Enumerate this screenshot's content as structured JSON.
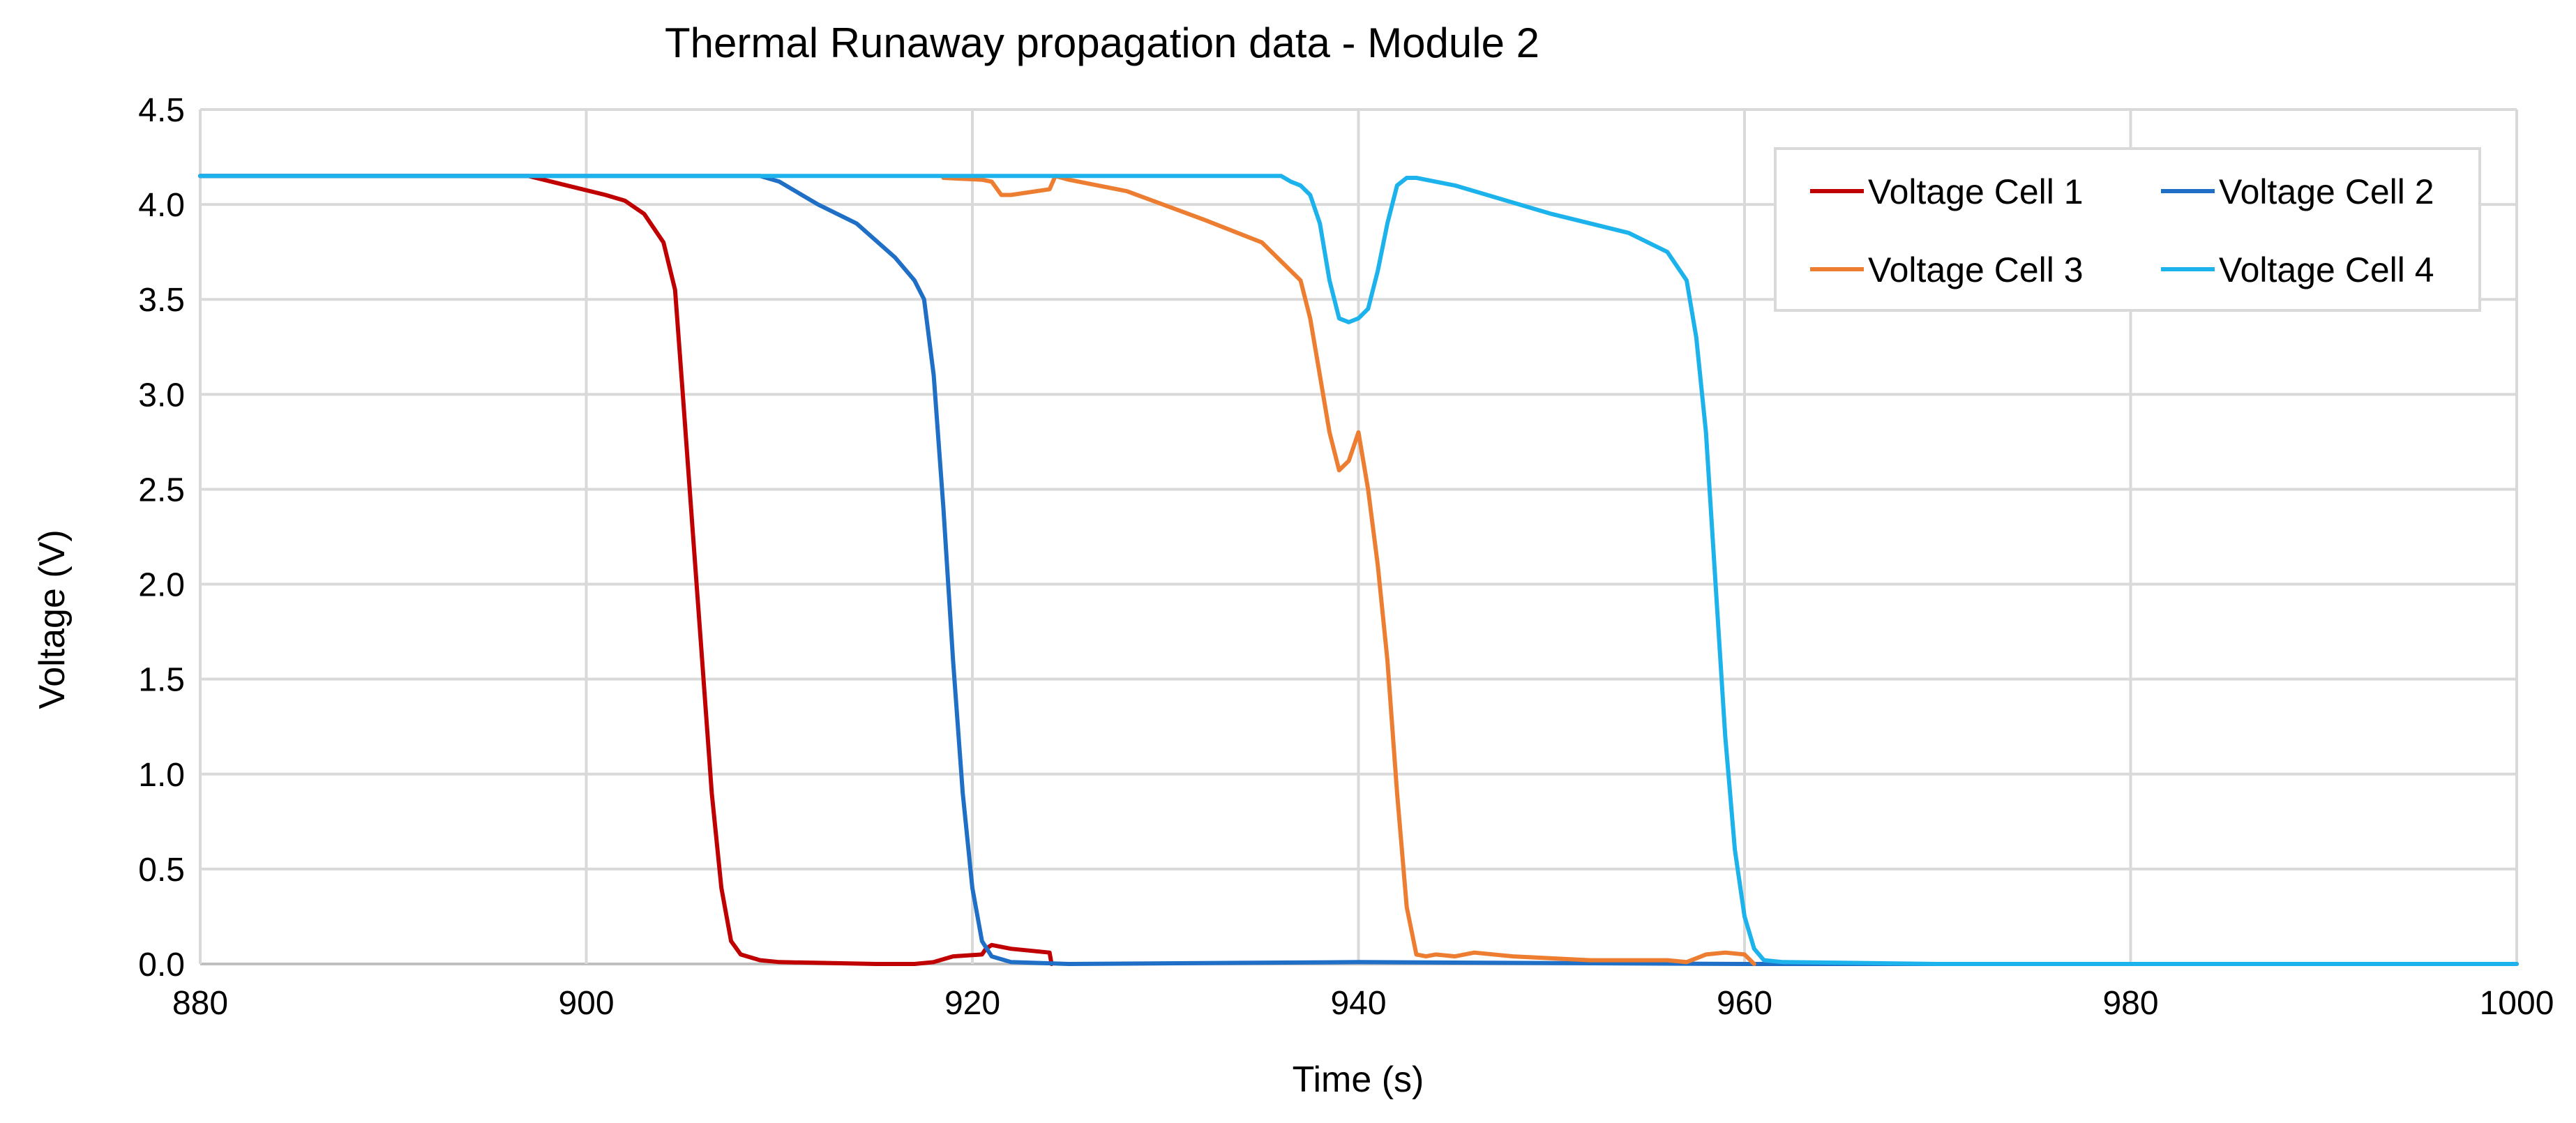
{
  "chart_data": {
    "type": "line",
    "title": "Thermal Runaway propagation data  - Module 2",
    "xlabel": "Time (s)",
    "ylabel": "Voltage (V)",
    "xlim": [
      880,
      1000
    ],
    "ylim": [
      0,
      4.5
    ],
    "x_ticks": [
      880,
      900,
      920,
      940,
      960,
      980,
      1000
    ],
    "y_ticks": [
      "0.0",
      "0.5",
      "1.0",
      "1.5",
      "2.0",
      "2.5",
      "3.0",
      "3.5",
      "4.0",
      "4.5"
    ],
    "grid": true,
    "legend_position": "top-right",
    "series": [
      {
        "name": "Voltage Cell 1",
        "color": "#c00000",
        "x": [
          880,
          897,
          899,
          901,
          902,
          903,
          904,
          904.6,
          905,
          905.5,
          906,
          906.5,
          907,
          907.5,
          908,
          909,
          910,
          915,
          917,
          918,
          919,
          920.5,
          920.7,
          921,
          922,
          924,
          924.1
        ],
        "y": [
          4.15,
          4.15,
          4.1,
          4.05,
          4.02,
          3.95,
          3.8,
          3.55,
          3.0,
          2.3,
          1.6,
          0.9,
          0.4,
          0.12,
          0.05,
          0.02,
          0.01,
          0.0,
          0.0,
          0.01,
          0.04,
          0.05,
          0.08,
          0.1,
          0.08,
          0.06,
          0.0
        ]
      },
      {
        "name": "Voltage Cell 2",
        "color": "#1f6fc6",
        "x": [
          880,
          909,
          910,
          912,
          914,
          916,
          917,
          917.5,
          918,
          918.5,
          919,
          919.5,
          920,
          920.5,
          921,
          922,
          925,
          940,
          960,
          1000
        ],
        "y": [
          4.15,
          4.15,
          4.12,
          4.0,
          3.9,
          3.72,
          3.6,
          3.5,
          3.1,
          2.4,
          1.6,
          0.9,
          0.4,
          0.12,
          0.04,
          0.01,
          0.0,
          0.01,
          0.0,
          0.0
        ]
      },
      {
        "name": "Voltage Cell 3",
        "color": "#ed7d31",
        "x": [
          918.5,
          920.5,
          921,
          921.5,
          922,
          924,
          924.3,
          925,
          928,
          932,
          935,
          936,
          937,
          937.5,
          938,
          938.5,
          939,
          939.5,
          940,
          940.5,
          941,
          941.5,
          942,
          942.5,
          943,
          943.5,
          944,
          945,
          946,
          948,
          952,
          956,
          957,
          958,
          959,
          960,
          960.5
        ],
        "y": [
          4.14,
          4.13,
          4.12,
          4.05,
          4.05,
          4.08,
          4.15,
          4.13,
          4.07,
          3.92,
          3.8,
          3.7,
          3.6,
          3.4,
          3.1,
          2.8,
          2.6,
          2.65,
          2.8,
          2.5,
          2.1,
          1.6,
          0.9,
          0.3,
          0.05,
          0.04,
          0.05,
          0.04,
          0.06,
          0.04,
          0.02,
          0.02,
          0.01,
          0.05,
          0.06,
          0.05,
          0.0
        ]
      },
      {
        "name": "Voltage Cell 4",
        "color": "#1cb2ec",
        "x": [
          880,
          936,
          936.5,
          937,
          937.5,
          938,
          938.5,
          939,
          939.5,
          940,
          940.5,
          941,
          941.5,
          942,
          942.5,
          943,
          945,
          950,
          954,
          956,
          957,
          957.5,
          958,
          958.5,
          959,
          959.5,
          960,
          960.5,
          961,
          962,
          970,
          1000
        ],
        "y": [
          4.15,
          4.15,
          4.12,
          4.1,
          4.05,
          3.9,
          3.6,
          3.4,
          3.38,
          3.4,
          3.45,
          3.65,
          3.9,
          4.1,
          4.14,
          4.14,
          4.1,
          3.95,
          3.85,
          3.75,
          3.6,
          3.3,
          2.8,
          2.0,
          1.2,
          0.6,
          0.25,
          0.08,
          0.02,
          0.01,
          0.0,
          0.0
        ]
      }
    ]
  }
}
